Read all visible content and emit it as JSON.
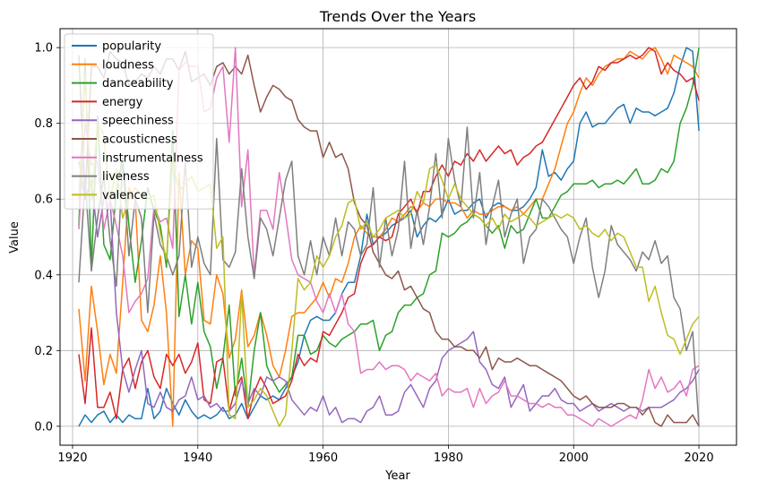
{
  "chart_data": {
    "type": "line",
    "title": "Trends Over the Years",
    "xlabel": "Year",
    "ylabel": "Value",
    "xlim": [
      1918,
      2026
    ],
    "ylim": [
      -0.05,
      1.05
    ],
    "x_ticks": [
      1920,
      1940,
      1960,
      1980,
      2000,
      2020
    ],
    "y_ticks": [
      0.0,
      0.2,
      0.4,
      0.6,
      0.8,
      1.0
    ],
    "x_tick_labels": [
      "1920",
      "1940",
      "1960",
      "1980",
      "2000",
      "2020"
    ],
    "y_tick_labels": [
      "0.0",
      "0.2",
      "0.4",
      "0.6",
      "0.8",
      "1.0"
    ],
    "grid": true,
    "legend_position": "upper-left",
    "x": [
      1921,
      1922,
      1923,
      1924,
      1925,
      1926,
      1927,
      1928,
      1929,
      1930,
      1931,
      1932,
      1933,
      1934,
      1935,
      1936,
      1937,
      1938,
      1939,
      1940,
      1941,
      1942,
      1943,
      1944,
      1945,
      1946,
      1947,
      1948,
      1949,
      1950,
      1951,
      1952,
      1953,
      1954,
      1955,
      1956,
      1957,
      1958,
      1959,
      1960,
      1961,
      1962,
      1963,
      1964,
      1965,
      1966,
      1967,
      1968,
      1969,
      1970,
      1971,
      1972,
      1973,
      1974,
      1975,
      1976,
      1977,
      1978,
      1979,
      1980,
      1981,
      1982,
      1983,
      1984,
      1985,
      1986,
      1987,
      1988,
      1989,
      1990,
      1991,
      1992,
      1993,
      1994,
      1995,
      1996,
      1997,
      1998,
      1999,
      2000,
      2001,
      2002,
      2003,
      2004,
      2005,
      2006,
      2007,
      2008,
      2009,
      2010,
      2011,
      2012,
      2013,
      2014,
      2015,
      2016,
      2017,
      2018,
      2019,
      2020
    ],
    "series": [
      {
        "name": "popularity",
        "color": "#1f77b4",
        "values": [
          0.0,
          0.03,
          0.01,
          0.03,
          0.04,
          0.01,
          0.03,
          0.01,
          0.03,
          0.02,
          0.02,
          0.1,
          0.02,
          0.04,
          0.1,
          0.06,
          0.03,
          0.07,
          0.04,
          0.02,
          0.03,
          0.02,
          0.03,
          0.05,
          0.02,
          0.03,
          0.06,
          0.02,
          0.05,
          0.08,
          0.07,
          0.08,
          0.07,
          0.1,
          0.13,
          0.17,
          0.24,
          0.28,
          0.29,
          0.28,
          0.28,
          0.3,
          0.35,
          0.38,
          0.38,
          0.45,
          0.56,
          0.48,
          0.5,
          0.51,
          0.53,
          0.54,
          0.55,
          0.57,
          0.5,
          0.53,
          0.55,
          0.54,
          0.56,
          0.6,
          0.56,
          0.57,
          0.57,
          0.59,
          0.6,
          0.55,
          0.58,
          0.59,
          0.58,
          0.57,
          0.57,
          0.58,
          0.6,
          0.63,
          0.73,
          0.66,
          0.67,
          0.65,
          0.68,
          0.7,
          0.8,
          0.83,
          0.79,
          0.8,
          0.8,
          0.82,
          0.84,
          0.85,
          0.8,
          0.84,
          0.83,
          0.83,
          0.82,
          0.83,
          0.84,
          0.88,
          0.95,
          1.0,
          0.99,
          0.78
        ]
      },
      {
        "name": "loudness",
        "color": "#ff7f0e",
        "values": [
          0.31,
          0.12,
          0.37,
          0.25,
          0.11,
          0.19,
          0.14,
          0.38,
          0.63,
          0.6,
          0.28,
          0.25,
          0.32,
          0.45,
          0.3,
          0.0,
          0.67,
          0.4,
          0.49,
          0.47,
          0.28,
          0.27,
          0.4,
          0.35,
          0.18,
          0.23,
          0.36,
          0.21,
          0.24,
          0.3,
          0.24,
          0.16,
          0.13,
          0.2,
          0.29,
          0.3,
          0.3,
          0.32,
          0.34,
          0.38,
          0.34,
          0.39,
          0.38,
          0.43,
          0.5,
          0.53,
          0.51,
          0.5,
          0.5,
          0.52,
          0.55,
          0.54,
          0.56,
          0.58,
          0.57,
          0.59,
          0.58,
          0.6,
          0.6,
          0.59,
          0.59,
          0.58,
          0.55,
          0.57,
          0.56,
          0.56,
          0.57,
          0.58,
          0.58,
          0.57,
          0.58,
          0.56,
          0.58,
          0.6,
          0.6,
          0.64,
          0.68,
          0.74,
          0.8,
          0.83,
          0.88,
          0.92,
          0.9,
          0.93,
          0.95,
          0.96,
          0.97,
          0.97,
          0.99,
          0.98,
          0.97,
          0.99,
          1.0,
          0.97,
          0.93,
          0.98,
          0.97,
          0.96,
          0.95,
          0.92
        ]
      },
      {
        "name": "danceability",
        "color": "#2ca02c",
        "values": [
          0.53,
          0.97,
          0.42,
          0.82,
          0.48,
          0.44,
          0.62,
          0.71,
          0.53,
          0.38,
          0.49,
          0.63,
          0.57,
          0.53,
          0.42,
          0.78,
          0.29,
          0.4,
          0.27,
          0.38,
          0.25,
          0.21,
          0.1,
          0.18,
          0.32,
          0.08,
          0.18,
          0.05,
          0.2,
          0.3,
          0.16,
          0.12,
          0.09,
          0.11,
          0.13,
          0.24,
          0.24,
          0.19,
          0.2,
          0.24,
          0.22,
          0.21,
          0.23,
          0.24,
          0.25,
          0.27,
          0.27,
          0.28,
          0.2,
          0.24,
          0.25,
          0.3,
          0.32,
          0.32,
          0.34,
          0.35,
          0.4,
          0.41,
          0.51,
          0.5,
          0.51,
          0.53,
          0.54,
          0.56,
          0.55,
          0.53,
          0.51,
          0.53,
          0.47,
          0.53,
          0.51,
          0.52,
          0.56,
          0.6,
          0.55,
          0.55,
          0.58,
          0.61,
          0.62,
          0.64,
          0.64,
          0.64,
          0.65,
          0.63,
          0.64,
          0.64,
          0.65,
          0.64,
          0.66,
          0.68,
          0.64,
          0.64,
          0.65,
          0.68,
          0.67,
          0.7,
          0.8,
          0.84,
          0.9,
          1.0
        ]
      },
      {
        "name": "energy",
        "color": "#d62728",
        "values": [
          0.19,
          0.06,
          0.26,
          0.05,
          0.05,
          0.09,
          0.02,
          0.15,
          0.18,
          0.1,
          0.17,
          0.2,
          0.13,
          0.1,
          0.19,
          0.16,
          0.19,
          0.14,
          0.17,
          0.22,
          0.07,
          0.06,
          0.17,
          0.18,
          0.04,
          0.1,
          0.13,
          0.02,
          0.09,
          0.13,
          0.1,
          0.06,
          0.07,
          0.08,
          0.12,
          0.19,
          0.16,
          0.18,
          0.17,
          0.25,
          0.24,
          0.27,
          0.3,
          0.34,
          0.35,
          0.43,
          0.47,
          0.48,
          0.5,
          0.49,
          0.5,
          0.56,
          0.58,
          0.6,
          0.56,
          0.62,
          0.62,
          0.66,
          0.69,
          0.66,
          0.7,
          0.69,
          0.72,
          0.7,
          0.73,
          0.7,
          0.72,
          0.74,
          0.72,
          0.73,
          0.69,
          0.71,
          0.72,
          0.74,
          0.75,
          0.78,
          0.81,
          0.84,
          0.87,
          0.9,
          0.92,
          0.89,
          0.91,
          0.95,
          0.94,
          0.96,
          0.96,
          0.97,
          0.98,
          0.97,
          0.98,
          1.0,
          0.99,
          0.93,
          0.96,
          0.94,
          0.93,
          0.91,
          0.92,
          0.86
        ]
      },
      {
        "name": "speechiness",
        "color": "#9467bd",
        "values": [
          0.7,
          0.6,
          0.65,
          0.5,
          0.6,
          0.6,
          0.3,
          0.15,
          0.09,
          0.15,
          0.2,
          0.06,
          0.05,
          0.09,
          0.05,
          0.04,
          0.07,
          0.08,
          0.13,
          0.07,
          0.08,
          0.05,
          0.06,
          0.04,
          0.04,
          0.06,
          0.12,
          0.06,
          0.1,
          0.08,
          0.13,
          0.12,
          0.13,
          0.12,
          0.07,
          0.05,
          0.03,
          0.05,
          0.04,
          0.08,
          0.03,
          0.05,
          0.01,
          0.02,
          0.02,
          0.01,
          0.04,
          0.05,
          0.08,
          0.03,
          0.03,
          0.04,
          0.09,
          0.11,
          0.08,
          0.05,
          0.1,
          0.12,
          0.18,
          0.2,
          0.21,
          0.22,
          0.23,
          0.25,
          0.17,
          0.15,
          0.11,
          0.1,
          0.13,
          0.05,
          0.08,
          0.11,
          0.04,
          0.06,
          0.08,
          0.08,
          0.1,
          0.07,
          0.06,
          0.06,
          0.04,
          0.05,
          0.06,
          0.04,
          0.05,
          0.06,
          0.05,
          0.04,
          0.05,
          0.05,
          0.04,
          0.05,
          0.05,
          0.05,
          0.06,
          0.07,
          0.09,
          0.1,
          0.12,
          0.15
        ]
      },
      {
        "name": "acousticness",
        "color": "#8c564b",
        "values": [
          0.98,
          0.6,
          0.95,
          0.95,
          0.92,
          0.99,
          0.97,
          0.96,
          0.9,
          0.91,
          0.93,
          0.92,
          0.95,
          0.93,
          0.97,
          0.97,
          0.94,
          0.99,
          0.91,
          0.92,
          0.93,
          0.9,
          0.95,
          0.96,
          0.93,
          0.95,
          0.93,
          0.98,
          0.9,
          0.83,
          0.87,
          0.9,
          0.89,
          0.87,
          0.86,
          0.81,
          0.79,
          0.78,
          0.78,
          0.71,
          0.75,
          0.71,
          0.72,
          0.68,
          0.59,
          0.55,
          0.53,
          0.46,
          0.43,
          0.4,
          0.39,
          0.41,
          0.36,
          0.37,
          0.34,
          0.31,
          0.3,
          0.25,
          0.23,
          0.23,
          0.21,
          0.21,
          0.2,
          0.2,
          0.18,
          0.21,
          0.15,
          0.18,
          0.17,
          0.17,
          0.18,
          0.17,
          0.16,
          0.16,
          0.15,
          0.14,
          0.13,
          0.12,
          0.1,
          0.08,
          0.07,
          0.08,
          0.06,
          0.05,
          0.05,
          0.05,
          0.06,
          0.06,
          0.05,
          0.05,
          0.03,
          0.05,
          0.01,
          0.0,
          0.03,
          0.01,
          0.01,
          0.01,
          0.03,
          0.0
        ]
      },
      {
        "name": "instrumentalness",
        "color": "#e377c2",
        "values": [
          0.52,
          0.8,
          0.69,
          0.7,
          0.52,
          0.6,
          0.53,
          0.45,
          0.3,
          0.33,
          0.35,
          0.39,
          0.58,
          0.54,
          0.55,
          0.47,
          0.94,
          0.96,
          0.95,
          0.95,
          0.83,
          0.84,
          0.92,
          0.95,
          0.75,
          1.0,
          0.58,
          0.73,
          0.4,
          0.57,
          0.57,
          0.52,
          0.67,
          0.56,
          0.44,
          0.4,
          0.39,
          0.38,
          0.33,
          0.3,
          0.35,
          0.3,
          0.35,
          0.27,
          0.25,
          0.14,
          0.15,
          0.15,
          0.17,
          0.15,
          0.16,
          0.16,
          0.15,
          0.12,
          0.14,
          0.13,
          0.12,
          0.14,
          0.08,
          0.1,
          0.09,
          0.09,
          0.1,
          0.05,
          0.1,
          0.06,
          0.08,
          0.09,
          0.12,
          0.08,
          0.08,
          0.07,
          0.06,
          0.06,
          0.05,
          0.06,
          0.05,
          0.05,
          0.03,
          0.03,
          0.02,
          0.01,
          0.0,
          0.02,
          0.01,
          0.0,
          0.01,
          0.02,
          0.03,
          0.02,
          0.07,
          0.15,
          0.1,
          0.13,
          0.09,
          0.1,
          0.12,
          0.08,
          0.15,
          0.16
        ]
      },
      {
        "name": "liveness",
        "color": "#7f7f7f",
        "values": [
          0.38,
          0.65,
          0.41,
          0.55,
          0.66,
          0.49,
          0.37,
          0.7,
          0.45,
          0.6,
          0.55,
          0.3,
          0.56,
          0.48,
          0.45,
          0.4,
          0.45,
          0.7,
          0.42,
          0.5,
          0.43,
          0.4,
          0.76,
          0.44,
          0.42,
          0.46,
          0.68,
          0.5,
          0.39,
          0.55,
          0.52,
          0.45,
          0.55,
          0.65,
          0.7,
          0.45,
          0.4,
          0.49,
          0.4,
          0.5,
          0.45,
          0.55,
          0.45,
          0.54,
          0.52,
          0.45,
          0.48,
          0.63,
          0.42,
          0.55,
          0.45,
          0.52,
          0.7,
          0.47,
          0.57,
          0.48,
          0.58,
          0.72,
          0.55,
          0.76,
          0.65,
          0.58,
          0.79,
          0.55,
          0.67,
          0.48,
          0.58,
          0.65,
          0.5,
          0.56,
          0.6,
          0.43,
          0.5,
          0.52,
          0.6,
          0.58,
          0.55,
          0.52,
          0.5,
          0.43,
          0.5,
          0.55,
          0.42,
          0.34,
          0.41,
          0.53,
          0.48,
          0.46,
          0.44,
          0.41,
          0.46,
          0.44,
          0.49,
          0.43,
          0.45,
          0.34,
          0.31,
          0.2,
          0.25,
          0.0
        ]
      },
      {
        "name": "valence",
        "color": "#bcbd22",
        "values": [
          0.6,
          0.93,
          0.6,
          0.8,
          0.77,
          0.6,
          0.68,
          0.55,
          0.6,
          0.63,
          0.61,
          0.6,
          0.61,
          0.51,
          0.44,
          0.7,
          0.62,
          0.64,
          0.66,
          0.62,
          0.63,
          0.64,
          0.47,
          0.5,
          0.03,
          0.02,
          0.35,
          0.05,
          0.07,
          0.1,
          0.08,
          0.04,
          0.0,
          0.03,
          0.2,
          0.39,
          0.36,
          0.38,
          0.45,
          0.42,
          0.45,
          0.5,
          0.53,
          0.59,
          0.6,
          0.52,
          0.54,
          0.5,
          0.52,
          0.55,
          0.56,
          0.57,
          0.55,
          0.56,
          0.62,
          0.59,
          0.68,
          0.69,
          0.65,
          0.6,
          0.64,
          0.6,
          0.58,
          0.56,
          0.55,
          0.53,
          0.55,
          0.52,
          0.56,
          0.54,
          0.55,
          0.56,
          0.55,
          0.53,
          0.54,
          0.55,
          0.56,
          0.55,
          0.56,
          0.55,
          0.52,
          0.53,
          0.51,
          0.5,
          0.52,
          0.49,
          0.51,
          0.5,
          0.46,
          0.42,
          0.42,
          0.33,
          0.37,
          0.3,
          0.24,
          0.23,
          0.19,
          0.23,
          0.27,
          0.29
        ]
      }
    ]
  }
}
